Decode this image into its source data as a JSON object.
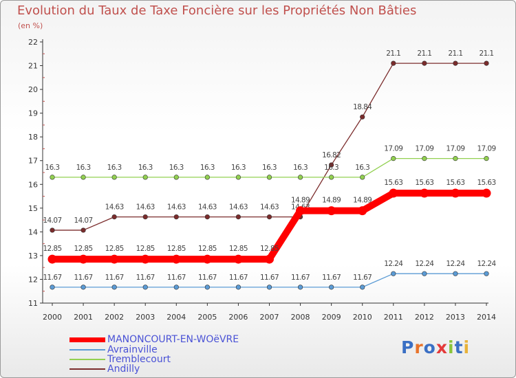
{
  "header": {
    "title": "Evolution du Taux de Taxe Foncière sur les Propriétés Non Bâties",
    "unit": "(en %)"
  },
  "colors": {
    "title": "#c0504d",
    "legend_text": "#4a52d6",
    "avrainville": "#5b9bd5",
    "tremblecourt": "#92d050",
    "andilly": "#7b2c2c",
    "manoncourt": "#ff0000"
  },
  "chart_data": {
    "type": "line",
    "title": "Evolution du Taux de Taxe Foncière sur les Propriétés Non Bâties",
    "ylabel": "(en %)",
    "xlabel": "",
    "x": [
      "2000",
      "2001",
      "2002",
      "2003",
      "2004",
      "2005",
      "2006",
      "2007",
      "2008",
      "2009",
      "2010",
      "2011",
      "2012",
      "2013",
      "2014"
    ],
    "ylim": [
      11,
      22
    ],
    "yticks": [
      "11",
      "12",
      "13",
      "14",
      "15",
      "16",
      "17",
      "18",
      "19",
      "20",
      "21",
      "22"
    ],
    "grid": false,
    "legend_position": "bottom-left",
    "series": [
      {
        "name": "Andilly",
        "key": "andilly",
        "values": [
          14.07,
          14.07,
          14.63,
          14.63,
          14.63,
          14.63,
          14.63,
          14.63,
          14.63,
          16.82,
          18.84,
          21.1,
          21.1,
          21.1,
          21.1
        ],
        "labels": [
          "14.07",
          "14.07",
          "14.63",
          "14.63",
          "14.63",
          "14.63",
          "14.63",
          "14.63",
          "14.63",
          "16.82",
          "18.84",
          "21.1",
          "21.1",
          "21.1",
          "21.1"
        ]
      },
      {
        "name": "Tremblecourt",
        "key": "tremblecourt",
        "values": [
          16.3,
          16.3,
          16.3,
          16.3,
          16.3,
          16.3,
          16.3,
          16.3,
          16.3,
          16.3,
          16.3,
          17.09,
          17.09,
          17.09,
          17.09
        ],
        "labels": [
          "16.3",
          "16.3",
          "16.3",
          "16.3",
          "16.3",
          "16.3",
          "16.3",
          "16.3",
          "16.3",
          "16.3",
          "16.3",
          "17.09",
          "17.09",
          "17.09",
          "17.09"
        ]
      },
      {
        "name": "Avrainville",
        "key": "avrainville",
        "values": [
          11.67,
          11.67,
          11.67,
          11.67,
          11.67,
          11.67,
          11.67,
          11.67,
          11.67,
          11.67,
          11.67,
          12.24,
          12.24,
          12.24,
          12.24
        ],
        "labels": [
          "11.67",
          "11.67",
          "11.67",
          "11.67",
          "11.67",
          "11.67",
          "11.67",
          "11.67",
          "11.67",
          "11.67",
          "11.67",
          "12.24",
          "12.24",
          "12.24",
          "12.24"
        ]
      },
      {
        "name": "MANONCOURT-EN-WOëVRE",
        "key": "manoncourt",
        "values": [
          12.85,
          12.85,
          12.85,
          12.85,
          12.85,
          12.85,
          12.85,
          12.85,
          14.89,
          14.89,
          14.89,
          15.63,
          15.63,
          15.63,
          15.63
        ],
        "labels": [
          "12.85",
          "12.85",
          "12.85",
          "12.85",
          "12.85",
          "12.85",
          "12.85",
          "12.85",
          "14.89",
          "14.89",
          "14.89",
          "15.63",
          "15.63",
          "15.63",
          "15.63"
        ]
      }
    ]
  },
  "legend": {
    "items": [
      {
        "label": "MANONCOURT-EN-WOëVRE",
        "key": "manoncourt"
      },
      {
        "label": "Avrainville",
        "key": "avrainville"
      },
      {
        "label": "Tremblecourt",
        "key": "tremblecourt"
      },
      {
        "label": "Andilly",
        "key": "andilly"
      }
    ]
  },
  "logo": {
    "text": "Proxiti",
    "letter_colors": [
      "#3a6fc4",
      "#e8732a",
      "#3a6fc4",
      "#e43a3a",
      "#8ac43a",
      "#3a6fc4",
      "#e8b23a"
    ]
  }
}
